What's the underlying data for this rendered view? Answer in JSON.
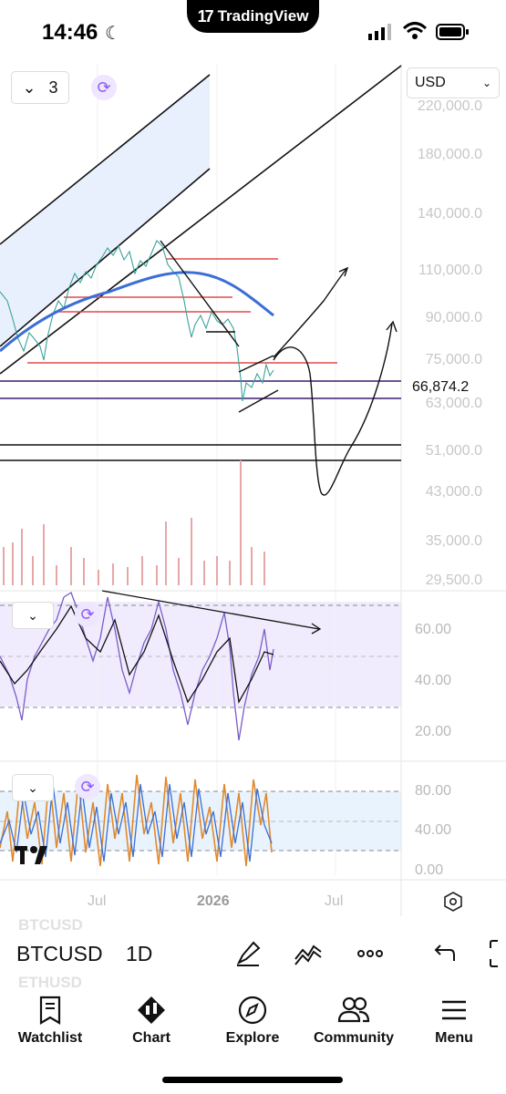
{
  "status_bar": {
    "time": "14:46",
    "island_text": "TradingView"
  },
  "chart": {
    "layout_count": "3",
    "currency": "USD",
    "price_axis": [
      "220,000.0",
      "180,000.0",
      "140,000.0",
      "110,000.0",
      "90,000.0",
      "75,000.0",
      "63,000.0",
      "51,000.0",
      "43,000.0",
      "35,000.0",
      "29,500.0"
    ],
    "last_price": "66,874.2",
    "rsi_axis": [
      "60.00",
      "40.00",
      "20.00"
    ],
    "stoch_axis": [
      "80.00",
      "40.00",
      "0.00"
    ],
    "time_axis": {
      "jul_1": "Jul",
      "year": "2026",
      "jul_2": "Jul"
    }
  },
  "symbol_bar": {
    "ghost_top": "BTCUSD",
    "symbol": "BTCUSD",
    "interval": "1D",
    "ghost_bottom": "ETHUSD"
  },
  "nav": [
    "Watchlist",
    "Chart",
    "Explore",
    "Community",
    "Menu"
  ]
}
